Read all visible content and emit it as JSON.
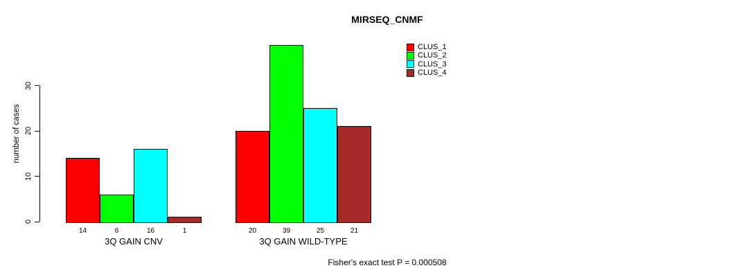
{
  "chart_data": {
    "type": "bar",
    "title": "MIRSEQ_CNMF",
    "ylabel": "number of cases",
    "xlabel": "",
    "categories": [
      "3Q GAIN CNV",
      "3Q GAIN WILD-TYPE"
    ],
    "series": [
      {
        "name": "CLUS_1",
        "color": "#FF0000",
        "values": [
          14,
          20
        ]
      },
      {
        "name": "CLUS_2",
        "color": "#00FF00",
        "values": [
          6,
          39
        ]
      },
      {
        "name": "CLUS_3",
        "color": "#00FFFF",
        "values": [
          16,
          25
        ]
      },
      {
        "name": "CLUS_4",
        "color": "#A52A2A",
        "values": [
          1,
          21
        ]
      }
    ],
    "bar_value_labels": [
      [
        14,
        6,
        16,
        1
      ],
      [
        20,
        39,
        25,
        21
      ]
    ],
    "yticks": [
      0,
      10,
      20,
      30
    ],
    "ylim": [
      0,
      39
    ],
    "grid": false,
    "legend_position": "top-right",
    "annotation": "Fisher's exact test P = 0.000508"
  },
  "legend": {
    "entries": [
      {
        "label": "CLUS_1",
        "color": "#FF0000"
      },
      {
        "label": "CLUS_2",
        "color": "#00FF00"
      },
      {
        "label": "CLUS_3",
        "color": "#00FFFF"
      },
      {
        "label": "CLUS_4",
        "color": "#A52A2A"
      }
    ]
  },
  "footer": {
    "text": "Fisher's exact test P = 0.000508"
  }
}
